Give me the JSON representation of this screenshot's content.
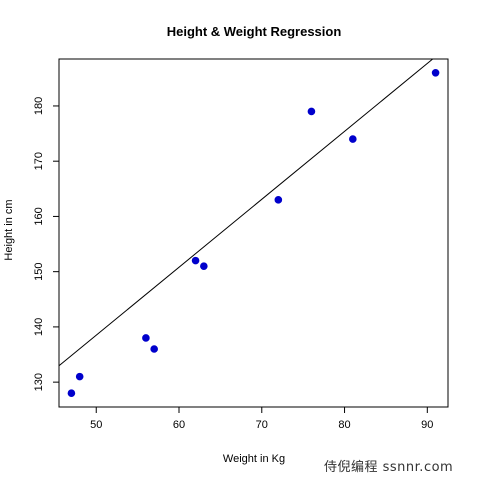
{
  "chart_data": {
    "type": "scatter",
    "title": "Height & Weight Regression",
    "xlabel": "Weight in Kg",
    "ylabel": "Height in cm",
    "xlim": [
      45.5,
      92.5
    ],
    "ylim": [
      125.5,
      188.5
    ],
    "x_ticks": [
      50,
      60,
      70,
      80,
      90
    ],
    "y_ticks": [
      130,
      140,
      150,
      160,
      170,
      180
    ],
    "points": [
      {
        "x": 47,
        "y": 128
      },
      {
        "x": 48,
        "y": 131
      },
      {
        "x": 56,
        "y": 138
      },
      {
        "x": 57,
        "y": 136
      },
      {
        "x": 62,
        "y": 152
      },
      {
        "x": 63,
        "y": 151
      },
      {
        "x": 72,
        "y": 163
      },
      {
        "x": 76,
        "y": 179
      },
      {
        "x": 81,
        "y": 174
      },
      {
        "x": 91,
        "y": 186
      }
    ],
    "regression_line": {
      "intercept": 77.0,
      "slope": 1.23
    },
    "point_color": "#0000cc",
    "line_color": "#000000",
    "grid": false,
    "legend": "none"
  },
  "watermark": "侍倪编程 ssnnr.com"
}
